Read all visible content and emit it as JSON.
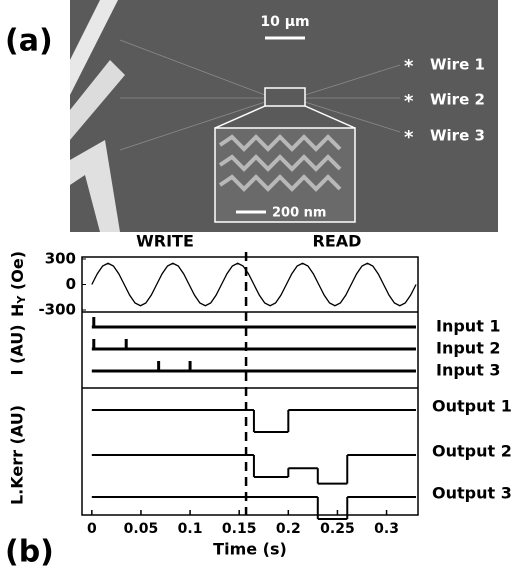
{
  "panel_a": {
    "label": "(a)",
    "scale_bar": "10 μm",
    "inset_scale_bar": "200 nm",
    "wires": [
      {
        "marker": "*",
        "label": "Wire 1"
      },
      {
        "marker": "*",
        "label": "Wire 2"
      },
      {
        "marker": "*",
        "label": "Wire 3"
      }
    ]
  },
  "chart_data": {
    "type": "line",
    "panel_label": "(b)",
    "phases": [
      "WRITE",
      "READ"
    ],
    "phase_boundary": 0.157,
    "xlabel": "Time (s)",
    "xlim": [
      -0.01,
      0.332
    ],
    "xticks": [
      0,
      0.05,
      0.1,
      0.15,
      0.2,
      0.25,
      0.3
    ],
    "field": {
      "ylabel": [
        "H",
        "Y",
        " (Oe)"
      ],
      "ylim": [
        -300,
        300
      ],
      "yticks": [
        300,
        0,
        -300
      ],
      "color": "#000000",
      "x": [
        0,
        0.0055,
        0.011,
        0.0165,
        0.022,
        0.0275,
        0.033,
        0.0385,
        0.044,
        0.0495,
        0.055,
        0.0605,
        0.066,
        0.0715,
        0.077,
        0.0825,
        0.088,
        0.0935,
        0.099,
        0.1045,
        0.11,
        0.1155,
        0.121,
        0.1265,
        0.132,
        0.1375,
        0.143,
        0.1485,
        0.154,
        0.1595,
        0.165,
        0.1705,
        0.176,
        0.1815,
        0.187,
        0.1925,
        0.198,
        0.2035,
        0.209,
        0.2145,
        0.22,
        0.2255,
        0.231,
        0.2365,
        0.242,
        0.2475,
        0.253,
        0.2585,
        0.264,
        0.2695,
        0.275,
        0.2805,
        0.286,
        0.2915,
        0.297,
        0.3025,
        0.308,
        0.3135,
        0.319,
        0.3245,
        0.33
      ],
      "values": [
        0,
        125,
        217,
        250,
        217,
        125,
        0,
        -125,
        -217,
        -250,
        -217,
        -125,
        0,
        125,
        217,
        250,
        217,
        125,
        0,
        -125,
        -217,
        -250,
        -217,
        -125,
        0,
        125,
        217,
        250,
        217,
        125,
        0,
        -125,
        -217,
        -250,
        -217,
        -125,
        0,
        125,
        217,
        250,
        217,
        125,
        0,
        -125,
        -217,
        -250,
        -217,
        -125,
        0,
        125,
        217,
        250,
        217,
        125,
        0,
        -125,
        -217,
        -250,
        -217,
        -125,
        0
      ]
    },
    "inputs": {
      "ylabel": "I (AU)",
      "series": [
        {
          "name": "Input 1",
          "color": "#000000",
          "pulses": [
            0.002
          ]
        },
        {
          "name": "Input 2",
          "color": "#000000",
          "pulses": [
            0.002,
            0.035
          ]
        },
        {
          "name": "Input 3",
          "color": "#000000",
          "pulses": [
            0.068,
            0.1
          ]
        }
      ]
    },
    "outputs": {
      "ylabel": "L.Kerr (AU)",
      "series": [
        {
          "name": "Output 1",
          "color": "#000000",
          "edges": [
            0,
            0.165,
            0.2,
            0.33
          ],
          "values": [
            0,
            -1,
            0
          ]
        },
        {
          "name": "Output 2",
          "color": "#000000",
          "edges": [
            0,
            0.165,
            0.2,
            0.23,
            0.26,
            0.33
          ],
          "values": [
            0,
            -1,
            -0.6,
            -1.3,
            0
          ]
        },
        {
          "name": "Output 3",
          "color": "#000000",
          "edges": [
            0,
            0.23,
            0.26,
            0.33
          ],
          "values": [
            0,
            -1,
            0
          ]
        }
      ]
    }
  }
}
